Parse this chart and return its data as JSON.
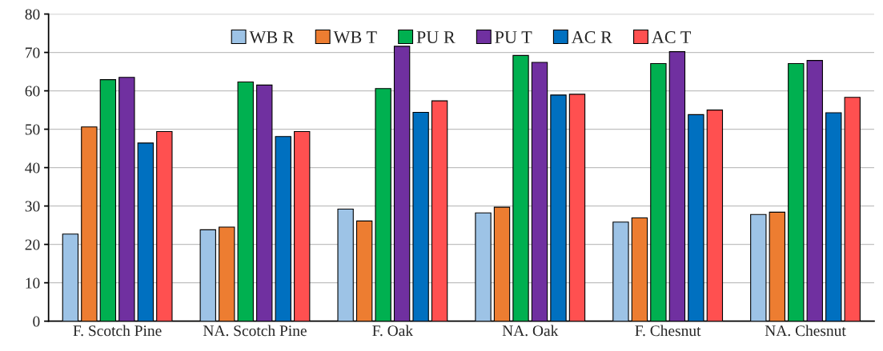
{
  "chart_data": {
    "type": "bar",
    "categories": [
      "F. Scotch Pine",
      "NA. Scotch Pine",
      "F. Oak",
      "NA. Oak",
      "F. Chesnut",
      "NA. Chesnut"
    ],
    "series": [
      {
        "name": "WB R",
        "color": "#9dc3e6",
        "values": [
          22.7,
          23.8,
          29.2,
          28.2,
          25.8,
          27.8
        ]
      },
      {
        "name": "WB T",
        "color": "#ed7d31",
        "values": [
          50.6,
          24.5,
          26.1,
          29.7,
          26.9,
          28.4
        ]
      },
      {
        "name": "PU R",
        "color": "#00b050",
        "values": [
          62.9,
          62.3,
          60.6,
          69.2,
          67.1,
          67.1
        ]
      },
      {
        "name": "PU T",
        "color": "#7030a0",
        "values": [
          63.5,
          61.5,
          71.6,
          67.4,
          70.2,
          67.9
        ]
      },
      {
        "name": "AC R",
        "color": "#0070c0",
        "values": [
          46.4,
          48.1,
          54.4,
          58.9,
          53.8,
          54.3
        ]
      },
      {
        "name": "AC T",
        "color": "#ff5050",
        "values": [
          49.4,
          49.4,
          57.4,
          59.1,
          55.0,
          58.3
        ]
      }
    ],
    "ylim": [
      0,
      80
    ],
    "yticks": [
      0,
      10,
      20,
      30,
      40,
      50,
      60,
      70,
      80
    ],
    "grid": "y",
    "legend": "top"
  }
}
